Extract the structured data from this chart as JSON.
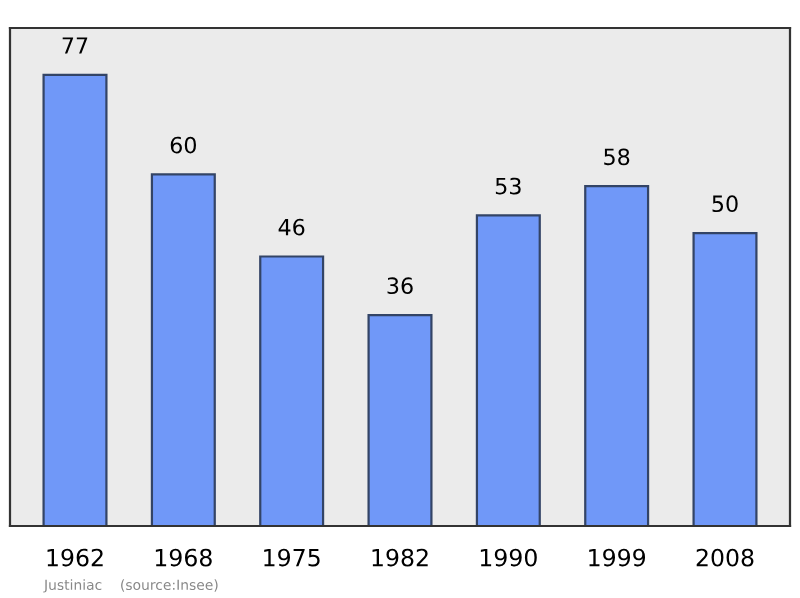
{
  "chart_data": {
    "type": "bar",
    "categories": [
      "1962",
      "1968",
      "1975",
      "1982",
      "1990",
      "1999",
      "2008"
    ],
    "values": [
      77,
      60,
      46,
      36,
      53,
      58,
      50
    ],
    "color": "#7098f8",
    "data_labels": true,
    "ylim": [
      0,
      85
    ],
    "tick_labels": "x",
    "grid": false,
    "legend": false,
    "annotations": [
      "Justiniac    (source:Insee)"
    ]
  }
}
